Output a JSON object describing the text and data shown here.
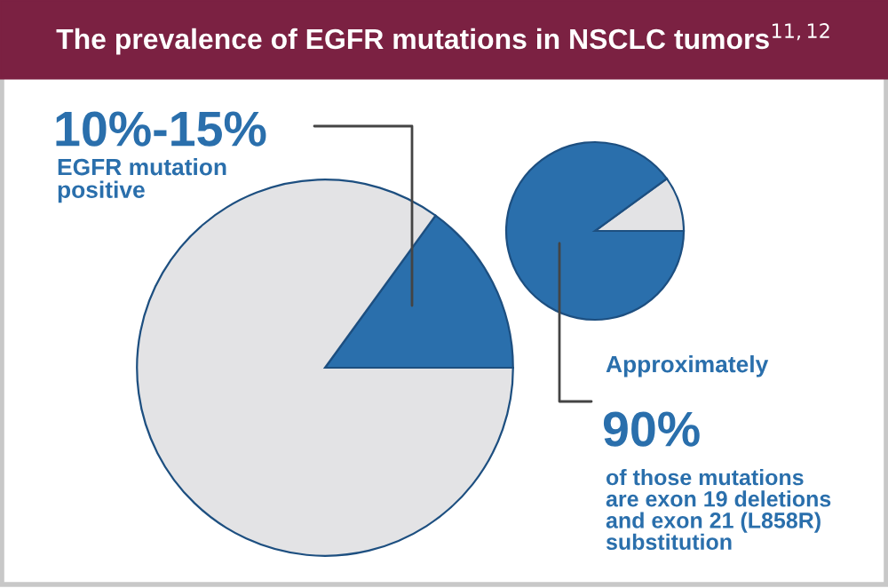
{
  "chart_data": [
    {
      "type": "pie",
      "title": "The prevalence of EGFR mutations in NSCLC tumors$^{11,12}$",
      "categories": [
        null,
        null
      ],
      "values": [
        15,
        85
      ],
      "colors": [
        "#2a6fac",
        "#e3e3e5"
      ],
      "annotations": [
        "10%-15%",
        "EGFR mutation\npositive"
      ]
    },
    {
      "type": "pie",
      "categories": [
        null,
        null
      ],
      "values": [
        10,
        90
      ],
      "colors": [
        "#e3e3e5",
        "#2a6fac"
      ],
      "annotations": [
        "Approximately",
        "90%",
        "of those mutations\nare exon 19 deletions\nand exon 21 (L858R)\nsubstitution"
      ]
    }
  ]
}
